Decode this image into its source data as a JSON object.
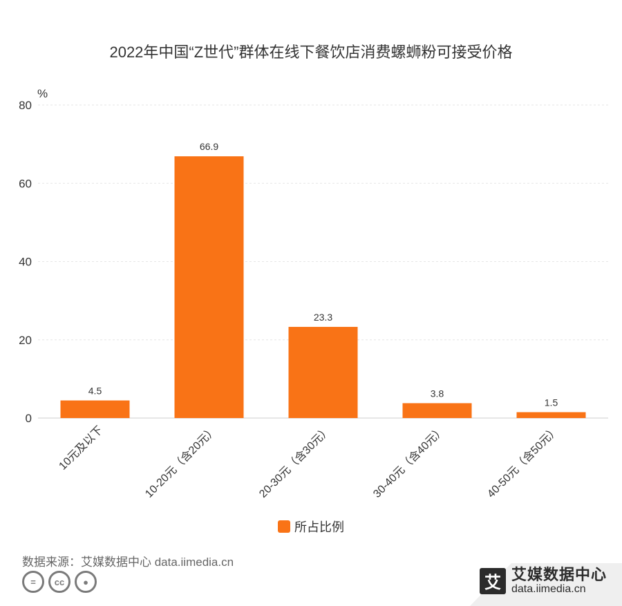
{
  "header": {
    "title": "2022年中国“Z世代”群体在线下餐饮店消费螺蛳粉可接受价格"
  },
  "chart_data": {
    "type": "bar",
    "title": "2022年中国“Z世代”群体在线下餐饮店消费螺蛳粉可接受价格",
    "ylabel": "%",
    "xlabel": "",
    "ylim": [
      0,
      80
    ],
    "yticks": [
      0,
      20,
      40,
      60,
      80
    ],
    "categories": [
      "10元及以下",
      "10-20元（含20元）",
      "20-30元（含30元）",
      "30-40元（含40元）",
      "40-50元（含50元）"
    ],
    "series": [
      {
        "name": "所占比例",
        "values": [
          4.5,
          66.9,
          23.3,
          3.8,
          1.5
        ]
      }
    ],
    "grid": true,
    "legend_position": "bottom",
    "colors": {
      "bar": "#f97316",
      "grid": "#e6e6e6",
      "axis_text": "#333333",
      "label_text": "#333333"
    }
  },
  "legend": {
    "label": "所占比例"
  },
  "source": {
    "text": "数据来源：艾媒数据中心 data.iimedia.cn"
  },
  "brand": {
    "logo_char": "艾",
    "name": "艾媒数据中心",
    "url": "data.iimedia.cn"
  },
  "license_icons": [
    "equals-icon",
    "cc-icon",
    "person-icon"
  ]
}
